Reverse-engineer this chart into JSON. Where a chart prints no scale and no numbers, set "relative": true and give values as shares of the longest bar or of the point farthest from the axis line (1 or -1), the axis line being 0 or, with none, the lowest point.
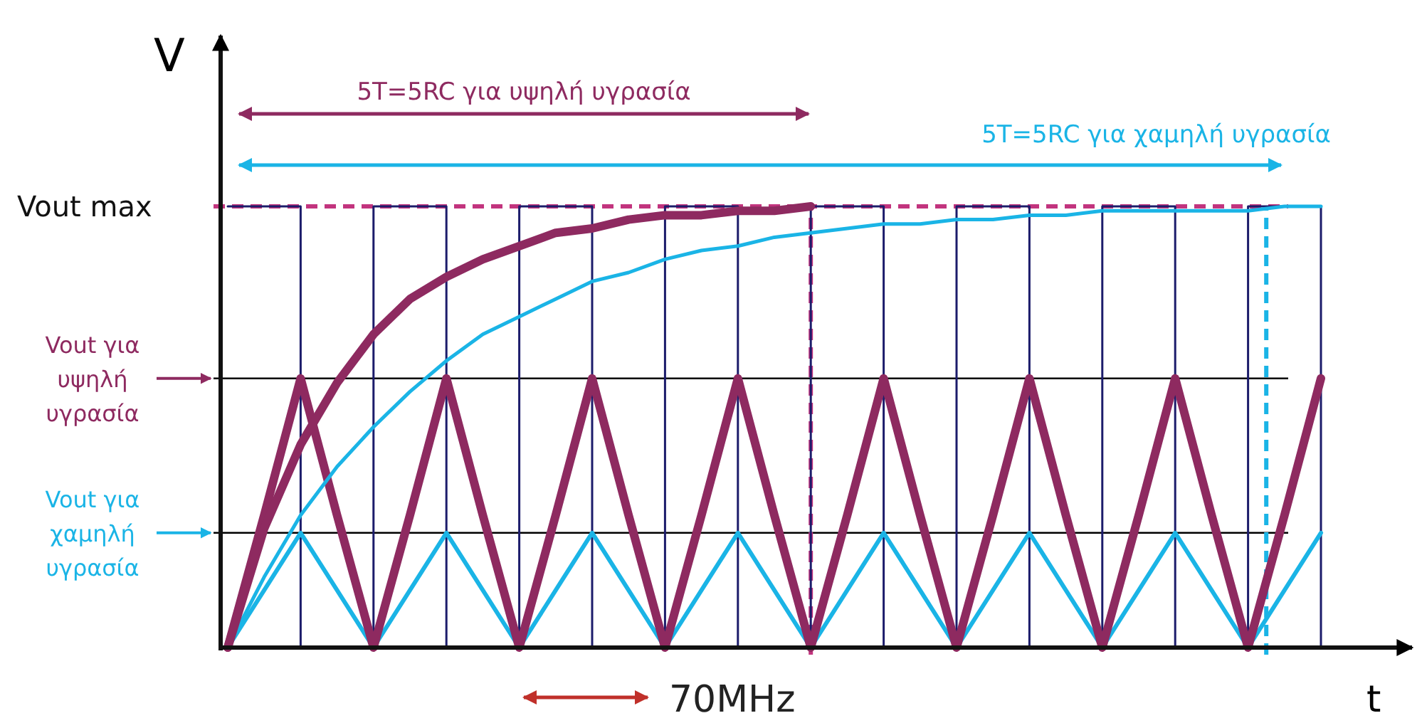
{
  "chart_data": {
    "type": "line",
    "relative": true,
    "xlabel": "t",
    "ylabel": "V",
    "legend": false,
    "categories": [
      null,
      null,
      null,
      null,
      null,
      null,
      null,
      null,
      null,
      null,
      null,
      null,
      null,
      null,
      null,
      null,
      null,
      null,
      null,
      null,
      null,
      null,
      null,
      null,
      null,
      null,
      null,
      null,
      null,
      null,
      null
    ],
    "series": [
      {
        "type": "step",
        "color": "#1c1c6b",
        "values": [
          1,
          1,
          0,
          0,
          1,
          1,
          0,
          0,
          1,
          1,
          0,
          0,
          1,
          1,
          0,
          0,
          1,
          1,
          0,
          0,
          1,
          1,
          0,
          0,
          1,
          1,
          0,
          0,
          1,
          1,
          0
        ]
      },
      {
        "color": "#1ab4e6",
        "values": [
          0,
          0.13,
          0.26,
          0.13,
          0,
          0.13,
          0.26,
          0.13,
          0,
          0.13,
          0.26,
          0.13,
          0,
          0.13,
          0.26,
          0.13,
          0,
          0.13,
          0.26,
          0.13,
          0,
          0.13,
          0.26,
          0.13,
          0,
          0.13,
          0.26,
          0.13,
          0,
          0.13,
          0.26
        ]
      },
      {
        "color": "#8e2a60",
        "values": [
          0,
          0.3,
          0.61,
          0.3,
          0,
          0.3,
          0.61,
          0.3,
          0,
          0.3,
          0.61,
          0.3,
          0,
          0.3,
          0.61,
          0.3,
          0,
          0.3,
          0.61,
          0.3,
          0,
          0.3,
          0.61,
          0.3,
          0,
          0.3,
          0.61,
          0.3,
          0,
          0.3,
          0.61
        ]
      },
      {
        "color": "#1ab4e6",
        "values": [
          0,
          0.16,
          0.3,
          0.41,
          0.5,
          0.58,
          0.65,
          0.71,
          0.75,
          0.79,
          0.83,
          0.85,
          0.88,
          0.9,
          0.91,
          0.93,
          0.94,
          0.95,
          0.96,
          0.96,
          0.97,
          0.97,
          0.98,
          0.98,
          0.99,
          0.99,
          0.99,
          0.99,
          0.99,
          1,
          1
        ]
      },
      {
        "color": "#8e2a60",
        "values": [
          0,
          0.27,
          0.46,
          0.6,
          0.71,
          0.79,
          0.84,
          0.88,
          0.91,
          0.94,
          0.95,
          0.97,
          0.98,
          0.98,
          0.99,
          0.99,
          1,
          null,
          null,
          null,
          null,
          null,
          null,
          null,
          null,
          null,
          null,
          null,
          null,
          null,
          null
        ]
      }
    ],
    "ref_lines": [
      {
        "axis": "y",
        "value": 1,
        "label": "Vout max",
        "color": "#c2347e",
        "line_style": "dashed"
      },
      {
        "axis": "y",
        "value": 0.61,
        "label": "Vout για υψηλή υγρασία",
        "color": "#000000"
      },
      {
        "axis": "y",
        "value": 0.26,
        "label": "Vout για χαμηλή υγρασία",
        "color": "#000000"
      }
    ],
    "annotations": [
      "5T=5RC για υψηλή υγρασία",
      "5T=5RC για χαμηλή υγρασία",
      "70MHz"
    ]
  }
}
